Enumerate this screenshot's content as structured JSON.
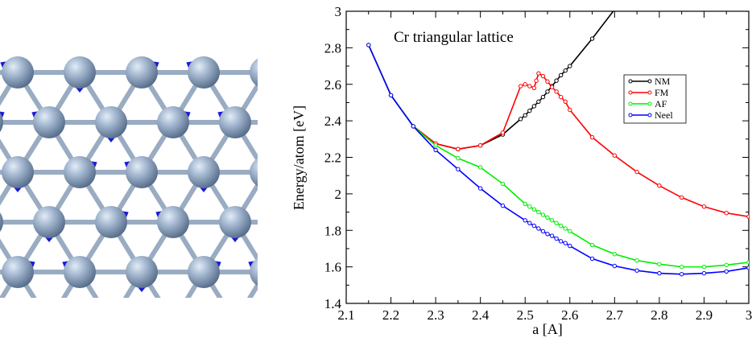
{
  "chart_data": {
    "type": "line",
    "title": "Cr triangular lattice",
    "xlabel": "a [A]",
    "ylabel": "Energy/atom [eV]",
    "xlim": [
      2.1,
      3.0
    ],
    "ylim": [
      1.4,
      3.0
    ],
    "x_ticks": [
      "2.1",
      "2.2",
      "2.3",
      "2.4",
      "2.5",
      "2.6",
      "2.7",
      "2.8",
      "2.9",
      "3"
    ],
    "y_ticks": [
      "1.4",
      "1.6",
      "1.8",
      "2",
      "2.2",
      "2.4",
      "2.6",
      "2.8",
      "3"
    ],
    "grid": false,
    "legend_position": "right-middle",
    "series": [
      {
        "name": "NM",
        "color": "#000000",
        "points": [
          [
            2.15,
            2.815
          ],
          [
            2.2,
            2.54
          ],
          [
            2.25,
            2.37
          ],
          [
            2.3,
            2.275
          ],
          [
            2.35,
            2.245
          ],
          [
            2.4,
            2.265
          ],
          [
            2.45,
            2.325
          ],
          [
            2.49,
            2.41
          ],
          [
            2.5,
            2.43
          ],
          [
            2.51,
            2.455
          ],
          [
            2.52,
            2.48
          ],
          [
            2.53,
            2.505
          ],
          [
            2.54,
            2.53
          ],
          [
            2.55,
            2.56
          ],
          [
            2.56,
            2.59
          ],
          [
            2.57,
            2.62
          ],
          [
            2.58,
            2.65
          ],
          [
            2.59,
            2.675
          ],
          [
            2.6,
            2.7
          ],
          [
            2.65,
            2.85
          ]
        ],
        "line_extension": [
          [
            2.7,
            3.01
          ]
        ]
      },
      {
        "name": "FM",
        "color": "#ff0000",
        "points": [
          [
            2.15,
            2.815
          ],
          [
            2.2,
            2.54
          ],
          [
            2.25,
            2.37
          ],
          [
            2.3,
            2.275
          ],
          [
            2.35,
            2.245
          ],
          [
            2.4,
            2.265
          ],
          [
            2.45,
            2.335
          ],
          [
            2.49,
            2.59
          ],
          [
            2.5,
            2.6
          ],
          [
            2.51,
            2.59
          ],
          [
            2.52,
            2.58
          ],
          [
            2.525,
            2.62
          ],
          [
            2.53,
            2.66
          ],
          [
            2.54,
            2.645
          ],
          [
            2.55,
            2.615
          ],
          [
            2.56,
            2.585
          ],
          [
            2.57,
            2.56
          ],
          [
            2.58,
            2.53
          ],
          [
            2.59,
            2.505
          ],
          [
            2.6,
            2.46
          ],
          [
            2.65,
            2.31
          ],
          [
            2.7,
            2.21
          ],
          [
            2.75,
            2.12
          ],
          [
            2.8,
            2.045
          ],
          [
            2.85,
            1.98
          ],
          [
            2.9,
            1.93
          ],
          [
            2.95,
            1.895
          ],
          [
            3.0,
            1.875
          ]
        ]
      },
      {
        "name": "AF",
        "color": "#00ee00",
        "points": [
          [
            2.15,
            2.815
          ],
          [
            2.2,
            2.54
          ],
          [
            2.25,
            2.37
          ],
          [
            2.3,
            2.265
          ],
          [
            2.35,
            2.195
          ],
          [
            2.4,
            2.145
          ],
          [
            2.45,
            2.055
          ],
          [
            2.5,
            1.945
          ],
          [
            2.51,
            1.93
          ],
          [
            2.52,
            1.915
          ],
          [
            2.53,
            1.9
          ],
          [
            2.54,
            1.885
          ],
          [
            2.55,
            1.87
          ],
          [
            2.56,
            1.855
          ],
          [
            2.57,
            1.84
          ],
          [
            2.58,
            1.825
          ],
          [
            2.59,
            1.81
          ],
          [
            2.6,
            1.795
          ],
          [
            2.65,
            1.72
          ],
          [
            2.7,
            1.67
          ],
          [
            2.75,
            1.635
          ],
          [
            2.8,
            1.615
          ],
          [
            2.85,
            1.6
          ],
          [
            2.9,
            1.6
          ],
          [
            2.95,
            1.61
          ],
          [
            3.0,
            1.625
          ]
        ]
      },
      {
        "name": "Neel",
        "color": "#0000ff",
        "points": [
          [
            2.15,
            2.815
          ],
          [
            2.2,
            2.54
          ],
          [
            2.25,
            2.37
          ],
          [
            2.3,
            2.24
          ],
          [
            2.35,
            2.135
          ],
          [
            2.4,
            2.03
          ],
          [
            2.45,
            1.935
          ],
          [
            2.5,
            1.855
          ],
          [
            2.51,
            1.84
          ],
          [
            2.52,
            1.825
          ],
          [
            2.53,
            1.81
          ],
          [
            2.54,
            1.795
          ],
          [
            2.55,
            1.78
          ],
          [
            2.56,
            1.77
          ],
          [
            2.57,
            1.755
          ],
          [
            2.58,
            1.74
          ],
          [
            2.59,
            1.73
          ],
          [
            2.6,
            1.715
          ],
          [
            2.65,
            1.645
          ],
          [
            2.7,
            1.605
          ],
          [
            2.75,
            1.58
          ],
          [
            2.8,
            1.565
          ],
          [
            2.85,
            1.56
          ],
          [
            2.9,
            1.565
          ],
          [
            2.95,
            1.575
          ],
          [
            3.0,
            1.595
          ]
        ]
      }
    ]
  },
  "lattice_image": {
    "sphere_color": "#8fa5c3",
    "bond_color": "#9aacc2",
    "arrow_color": "#1a1ad6"
  }
}
